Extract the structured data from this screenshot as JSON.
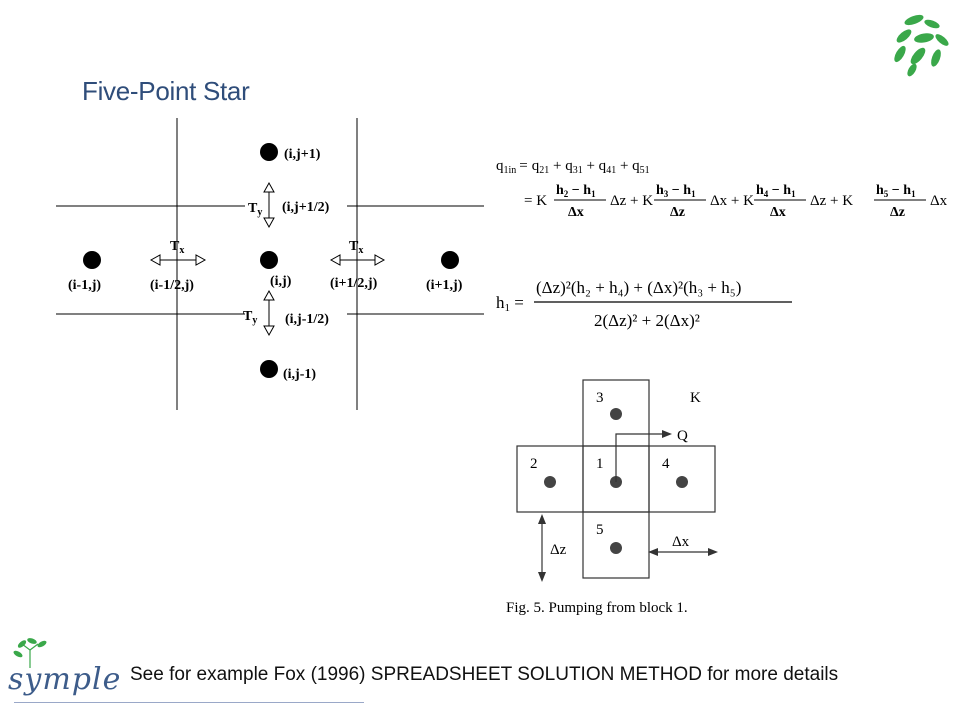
{
  "slide": {
    "title": "Five-Point Star",
    "footnote": "See for example Fox (1996) SPREADSHEET SOLUTION METHOD for more details",
    "logo_text": "symple"
  },
  "grid": {
    "nodes": {
      "top": "(i,j+1)",
      "top_half": "(i,j+1/2)",
      "left": "(i-1,j)",
      "left_half": "(i-1/2,j)",
      "center": "(i,j)",
      "right_half": "(i+1/2,j)",
      "right": "(i+1,j)",
      "bottom_half": "(i,j-1/2)",
      "bottom": "(i,j-1)"
    },
    "tx": "T",
    "tx_sub": "x",
    "ty": "T",
    "ty_sub": "y"
  },
  "equations": {
    "flux_lhs": "q",
    "flux_lhs_sub": "1in",
    "flux_rhs": "= q21 + q31 + q41 + q51",
    "flux_line2": "= K (h2 − h1)/Δx Δz + K (h3 − h1)/Δz Δx + K (h4 − h1)/Δx Δz + K (h5 − h1)/Δz Δx",
    "h1_lhs": "h",
    "h1_lhs_sub": "1",
    "h1_numerator": "(Δz)²(h₂ + h₄) + (Δx)²(h₃ + h₅)",
    "h1_denominator": "2(Δz)² + 2(Δx)²"
  },
  "figure5": {
    "block_labels": [
      "3",
      "2",
      "1",
      "4",
      "5"
    ],
    "k_label": "K",
    "q_label": "Q",
    "dz_label": "Δz",
    "dx_label": "Δx",
    "caption": "Fig. 5.  Pumping from block 1."
  },
  "colors": {
    "title": "#2f4d7a",
    "leaf_green": "#3aa84a",
    "logo_blue": "#3d5c8a"
  },
  "icons": [
    "leaf-cluster-icon",
    "symple-logo-icon"
  ]
}
